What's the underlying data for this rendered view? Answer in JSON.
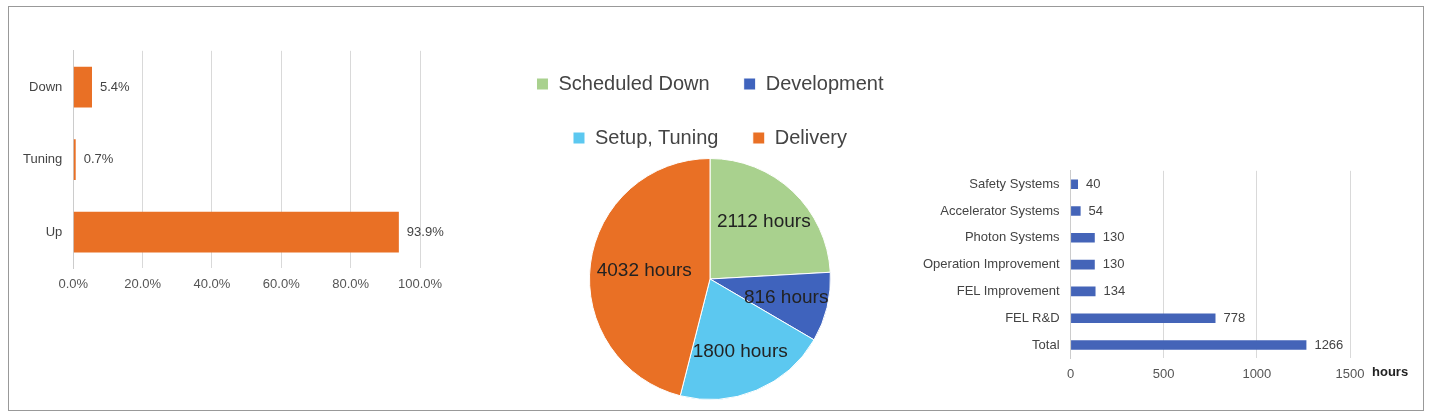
{
  "chart_data": [
    {
      "type": "bar",
      "orientation": "horizontal",
      "categories": [
        "Down",
        "Tuning",
        "Up"
      ],
      "values": [
        5.4,
        0.7,
        93.9
      ],
      "color": "#e97025",
      "value_labels": [
        "5.4%",
        "0.7%",
        "93.9%"
      ],
      "xlim": [
        0,
        100
      ],
      "xticks": [
        {
          "value": 0,
          "label": "0.0%"
        },
        {
          "value": 20,
          "label": "20.0%"
        },
        {
          "value": 40,
          "label": "40.0%"
        },
        {
          "value": 60,
          "label": "60.0%"
        },
        {
          "value": 80,
          "label": "80.0%"
        },
        {
          "value": 100,
          "label": "100.0%"
        }
      ],
      "grid": "x",
      "legend": false
    },
    {
      "type": "pie",
      "categories": [
        "Scheduled Down",
        "Development",
        "Setup, Tuning",
        "Delivery"
      ],
      "values": [
        2112,
        816,
        1800,
        4032
      ],
      "colors": [
        "#a9d18e",
        "#3f63bd",
        "#5cc8f0",
        "#e97025"
      ],
      "value_labels": [
        "2112 hours",
        "816 hours",
        "1800 hours",
        "4032 hours"
      ],
      "legend": "top"
    },
    {
      "type": "bar",
      "orientation": "horizontal",
      "categories": [
        "Safety Systems",
        "Accelerator Systems",
        "Photon Systems",
        "Operation Improvement",
        "FEL Improvement",
        "FEL R&D",
        "Total"
      ],
      "values": [
        40,
        54,
        130,
        130,
        134,
        778,
        1266
      ],
      "color": "#4464b8",
      "data_labels": true,
      "xlim": [
        0,
        1500
      ],
      "xticks": [
        0,
        500,
        1000,
        1500
      ],
      "xlabel": "hours",
      "grid": "x",
      "legend": false
    }
  ]
}
